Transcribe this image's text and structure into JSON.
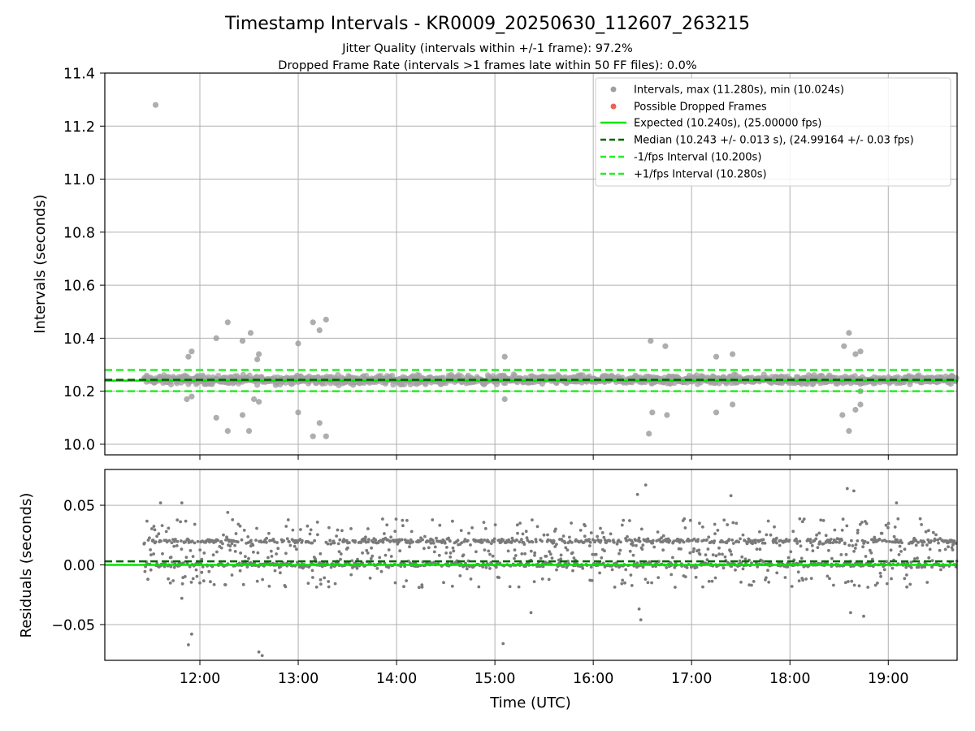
{
  "chart_data": [
    {
      "type": "scatter",
      "title": "Timestamp Intervals - KR0009_20250630_112607_263215",
      "subtitle_lines": [
        "Jitter Quality (intervals within +/-1 frame): 97.2%",
        "Dropped Frame Rate (intervals >1 frames late within 50 FF files): 0.0%"
      ],
      "ylabel": "Intervals (seconds)",
      "xlabel": "",
      "xlim": [
        "11:02",
        "19:42"
      ],
      "ylim": [
        9.96,
        11.4
      ],
      "y_ticks": [
        "10.0",
        "10.2",
        "10.4",
        "10.6",
        "10.8",
        "11.0",
        "11.2",
        "11.4"
      ],
      "grid": true,
      "legend_placement": "top-right",
      "legend": [
        "Intervals, max (11.280s), min (10.024s)",
        "Possible Dropped Frames",
        "Expected (10.240s), (25.00000 fps)",
        "Median (10.243 +/- 0.013 s), (24.99164 +/- 0.03 fps)",
        "-1/fps Interval (10.200s)",
        "+1/fps Interval (10.280s)"
      ],
      "reference_lines": [
        {
          "name": "Expected (10.240s), (25.00000 fps)",
          "y": 10.24,
          "style": "solid",
          "color": "#00e600"
        },
        {
          "name": "Median (10.243 +/- 0.013 s), (24.99164 +/- 0.03 fps)",
          "y": 10.243,
          "style": "dashed",
          "color": "#006400"
        },
        {
          "name": "-1/fps Interval (10.200s)",
          "y": 10.2,
          "style": "dashed",
          "color": "#22ee22"
        },
        {
          "name": "+1/fps Interval (10.280s)",
          "y": 10.28,
          "style": "dashed",
          "color": "#22ee22"
        }
      ],
      "series": [
        {
          "name": "Intervals, max (11.280s), min (10.024s)",
          "color": "#a0a0a0",
          "band": {
            "x_start": "11:26",
            "x_end": "19:42",
            "y_center": 10.243
          },
          "outliers": [
            {
              "x": "11:33",
              "y": 11.28
            },
            {
              "x": "11:53",
              "y": 10.33
            },
            {
              "x": "11:55",
              "y": 10.35
            },
            {
              "x": "11:52",
              "y": 10.17
            },
            {
              "x": "11:55",
              "y": 10.18
            },
            {
              "x": "12:10",
              "y": 10.4
            },
            {
              "x": "12:10",
              "y": 10.1
            },
            {
              "x": "12:17",
              "y": 10.46
            },
            {
              "x": "12:17",
              "y": 10.05
            },
            {
              "x": "12:26",
              "y": 10.39
            },
            {
              "x": "12:26",
              "y": 10.11
            },
            {
              "x": "12:31",
              "y": 10.42
            },
            {
              "x": "12:30",
              "y": 10.05
            },
            {
              "x": "12:33",
              "y": 10.17
            },
            {
              "x": "12:35",
              "y": 10.32
            },
            {
              "x": "12:36",
              "y": 10.34
            },
            {
              "x": "12:36",
              "y": 10.16
            },
            {
              "x": "13:00",
              "y": 10.38
            },
            {
              "x": "13:00",
              "y": 10.12
            },
            {
              "x": "13:09",
              "y": 10.46
            },
            {
              "x": "13:09",
              "y": 10.03
            },
            {
              "x": "13:13",
              "y": 10.43
            },
            {
              "x": "13:13",
              "y": 10.08
            },
            {
              "x": "13:17",
              "y": 10.47
            },
            {
              "x": "13:17",
              "y": 10.03
            },
            {
              "x": "15:06",
              "y": 10.33
            },
            {
              "x": "15:06",
              "y": 10.17
            },
            {
              "x": "16:35",
              "y": 10.39
            },
            {
              "x": "16:36",
              "y": 10.12
            },
            {
              "x": "16:34",
              "y": 10.04
            },
            {
              "x": "16:44",
              "y": 10.37
            },
            {
              "x": "16:45",
              "y": 10.11
            },
            {
              "x": "17:15",
              "y": 10.33
            },
            {
              "x": "17:15",
              "y": 10.12
            },
            {
              "x": "17:25",
              "y": 10.34
            },
            {
              "x": "17:25",
              "y": 10.15
            },
            {
              "x": "18:33",
              "y": 10.37
            },
            {
              "x": "18:32",
              "y": 10.11
            },
            {
              "x": "18:36",
              "y": 10.42
            },
            {
              "x": "18:36",
              "y": 10.05
            },
            {
              "x": "18:40",
              "y": 10.34
            },
            {
              "x": "18:43",
              "y": 10.35
            },
            {
              "x": "18:40",
              "y": 10.13
            },
            {
              "x": "18:43",
              "y": 10.15
            },
            {
              "x": "18:43",
              "y": 10.2
            }
          ]
        },
        {
          "name": "Possible Dropped Frames",
          "color": "#e8443a",
          "points": []
        }
      ]
    },
    {
      "type": "scatter",
      "xlabel": "Time (UTC)",
      "ylabel": "Residuals (seconds)",
      "xlim": [
        "11:02",
        "19:42"
      ],
      "ylim": [
        -0.08,
        0.08
      ],
      "x_ticks": [
        "12:00",
        "13:00",
        "14:00",
        "15:00",
        "16:00",
        "17:00",
        "18:00",
        "19:00"
      ],
      "y_ticks": [
        "−0.05",
        "0.00",
        "0.05"
      ],
      "grid": true,
      "reference_lines": [
        {
          "y": 0.0,
          "style": "solid",
          "color": "#00e600"
        },
        {
          "y": 0.003,
          "style": "dashed",
          "color": "#006400"
        }
      ],
      "series": [
        {
          "name": "",
          "color": "#7a7a7a",
          "band": {
            "x_start": "11:26",
            "x_end": "19:42",
            "levels": [
              0.0,
              0.02
            ],
            "spread": 0.02
          },
          "outliers": [
            {
              "x": "11:36",
              "y": 0.052
            },
            {
              "x": "11:49",
              "y": 0.052
            },
            {
              "x": "11:49",
              "y": -0.028
            },
            {
              "x": "11:53",
              "y": -0.067
            },
            {
              "x": "11:55",
              "y": -0.058
            },
            {
              "x": "12:17",
              "y": 0.044
            },
            {
              "x": "12:36",
              "y": -0.073
            },
            {
              "x": "12:38",
              "y": -0.076
            },
            {
              "x": "15:05",
              "y": -0.066
            },
            {
              "x": "15:22",
              "y": -0.04
            },
            {
              "x": "16:27",
              "y": 0.059
            },
            {
              "x": "16:32",
              "y": 0.067
            },
            {
              "x": "16:29",
              "y": -0.046
            },
            {
              "x": "16:28",
              "y": -0.037
            },
            {
              "x": "17:24",
              "y": 0.058
            },
            {
              "x": "18:35",
              "y": 0.064
            },
            {
              "x": "18:39",
              "y": 0.062
            },
            {
              "x": "18:37",
              "y": -0.04
            },
            {
              "x": "18:45",
              "y": -0.043
            },
            {
              "x": "19:05",
              "y": 0.052
            }
          ]
        }
      ]
    }
  ]
}
